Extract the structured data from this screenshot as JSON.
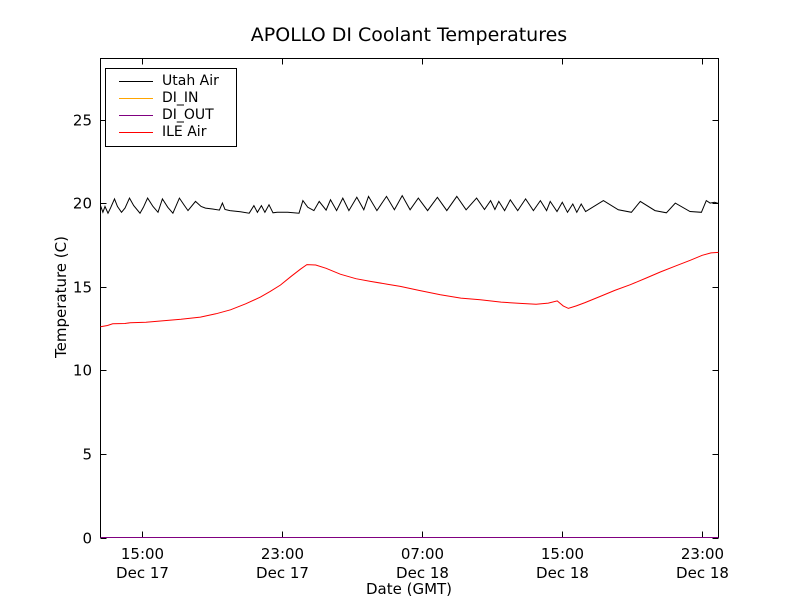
{
  "title": "APOLLO DI Coolant Temperatures",
  "axes": {
    "xlabel": "Date (GMT)",
    "ylabel": "Temperature (C)",
    "x_range": [
      12.6,
      47.93
    ],
    "y_range": [
      0,
      28.65
    ],
    "x_ticks": [
      {
        "value": 15,
        "line1": "15:00",
        "line2": "Dec 17"
      },
      {
        "value": 23,
        "line1": "23:00",
        "line2": "Dec 17"
      },
      {
        "value": 31,
        "line1": "07:00",
        "line2": "Dec 18"
      },
      {
        "value": 39,
        "line1": "15:00",
        "line2": "Dec 18"
      },
      {
        "value": 47,
        "line1": "23:00",
        "line2": "Dec 18"
      }
    ],
    "y_ticks": [
      0,
      5,
      10,
      15,
      20,
      25
    ]
  },
  "chart_data": {
    "type": "line",
    "title": "APOLLO DI Coolant Temperatures",
    "xlabel": "Date (GMT)",
    "ylabel": "Temperature (C)",
    "x_unit_hours_since": "Dec 17 00:00 GMT",
    "xlim": [
      12.6,
      47.93
    ],
    "ylim": [
      0,
      28.65
    ],
    "grid": false,
    "legend_position": "upper left",
    "series": [
      {
        "name": "Utah Air",
        "color": "#000000",
        "points": [
          [
            12.6,
            19.85
          ],
          [
            12.74,
            19.45
          ],
          [
            12.86,
            19.8
          ],
          [
            13.03,
            19.4
          ],
          [
            13.17,
            19.7
          ],
          [
            13.4,
            20.25
          ],
          [
            13.57,
            19.8
          ],
          [
            13.8,
            19.45
          ],
          [
            14.0,
            19.7
          ],
          [
            14.26,
            20.3
          ],
          [
            14.5,
            19.85
          ],
          [
            14.86,
            19.4
          ],
          [
            15.05,
            19.75
          ],
          [
            15.29,
            20.3
          ],
          [
            15.6,
            19.8
          ],
          [
            15.89,
            19.45
          ],
          [
            16.14,
            20.25
          ],
          [
            16.45,
            19.75
          ],
          [
            16.74,
            19.4
          ],
          [
            17.11,
            20.3
          ],
          [
            17.4,
            19.85
          ],
          [
            17.6,
            19.55
          ],
          [
            18.03,
            20.1
          ],
          [
            18.35,
            19.8
          ],
          [
            18.6,
            19.7
          ],
          [
            19.0,
            19.65
          ],
          [
            19.4,
            19.58
          ],
          [
            19.57,
            20.0
          ],
          [
            19.72,
            19.62
          ],
          [
            20.0,
            19.55
          ],
          [
            20.6,
            19.48
          ],
          [
            21.1,
            19.4
          ],
          [
            21.37,
            19.85
          ],
          [
            21.57,
            19.45
          ],
          [
            21.8,
            19.85
          ],
          [
            22.0,
            19.45
          ],
          [
            22.23,
            19.9
          ],
          [
            22.46,
            19.42
          ],
          [
            22.7,
            19.45
          ],
          [
            23.3,
            19.45
          ],
          [
            23.95,
            19.4
          ],
          [
            24.17,
            20.15
          ],
          [
            24.45,
            19.75
          ],
          [
            24.8,
            19.55
          ],
          [
            25.1,
            20.1
          ],
          [
            25.5,
            19.58
          ],
          [
            25.75,
            20.2
          ],
          [
            26.1,
            19.55
          ],
          [
            26.45,
            20.3
          ],
          [
            26.8,
            19.55
          ],
          [
            27.25,
            20.35
          ],
          [
            27.65,
            19.6
          ],
          [
            27.92,
            20.4
          ],
          [
            28.4,
            19.55
          ],
          [
            28.95,
            20.4
          ],
          [
            29.4,
            19.6
          ],
          [
            29.85,
            20.45
          ],
          [
            30.3,
            19.6
          ],
          [
            30.77,
            20.3
          ],
          [
            31.3,
            19.55
          ],
          [
            31.86,
            20.35
          ],
          [
            32.4,
            19.55
          ],
          [
            32.97,
            20.4
          ],
          [
            33.5,
            19.6
          ],
          [
            34.1,
            20.3
          ],
          [
            34.55,
            19.62
          ],
          [
            34.9,
            20.15
          ],
          [
            35.15,
            19.62
          ],
          [
            35.37,
            20.1
          ],
          [
            35.7,
            19.55
          ],
          [
            36.03,
            20.2
          ],
          [
            36.45,
            19.55
          ],
          [
            36.9,
            20.25
          ],
          [
            37.35,
            19.55
          ],
          [
            37.75,
            20.15
          ],
          [
            38.1,
            19.55
          ],
          [
            38.31,
            20.1
          ],
          [
            38.7,
            19.5
          ],
          [
            39.0,
            20.05
          ],
          [
            39.3,
            19.45
          ],
          [
            39.6,
            19.95
          ],
          [
            39.83,
            19.45
          ],
          [
            40.08,
            19.95
          ],
          [
            40.33,
            19.5
          ],
          [
            41.35,
            20.15
          ],
          [
            42.2,
            19.6
          ],
          [
            42.95,
            19.45
          ],
          [
            43.46,
            20.1
          ],
          [
            44.3,
            19.55
          ],
          [
            44.95,
            19.42
          ],
          [
            45.46,
            20.0
          ],
          [
            46.3,
            19.5
          ],
          [
            46.95,
            19.45
          ],
          [
            47.23,
            20.15
          ],
          [
            47.45,
            20.0
          ],
          [
            47.7,
            20.05
          ],
          [
            47.93,
            19.98
          ]
        ]
      },
      {
        "name": "DI_IN",
        "color": "#ffa500",
        "points": [
          [
            12.6,
            0
          ],
          [
            47.93,
            0
          ]
        ]
      },
      {
        "name": "DI_OUT",
        "color": "#800080",
        "points": [
          [
            12.6,
            0
          ],
          [
            47.93,
            0
          ]
        ]
      },
      {
        "name": "ILE Air",
        "color": "#ff0000",
        "points": [
          [
            12.6,
            12.6
          ],
          [
            13.0,
            12.68
          ],
          [
            13.3,
            12.78
          ],
          [
            14.0,
            12.8
          ],
          [
            14.3,
            12.85
          ],
          [
            15.2,
            12.88
          ],
          [
            16.03,
            12.95
          ],
          [
            17.2,
            13.05
          ],
          [
            18.31,
            13.18
          ],
          [
            19.2,
            13.38
          ],
          [
            20.03,
            13.62
          ],
          [
            20.9,
            13.98
          ],
          [
            21.74,
            14.38
          ],
          [
            22.3,
            14.72
          ],
          [
            22.89,
            15.1
          ],
          [
            23.5,
            15.62
          ],
          [
            24.03,
            16.05
          ],
          [
            24.4,
            16.32
          ],
          [
            24.9,
            16.3
          ],
          [
            25.5,
            16.1
          ],
          [
            26.31,
            15.75
          ],
          [
            27.2,
            15.48
          ],
          [
            28.03,
            15.32
          ],
          [
            29.0,
            15.15
          ],
          [
            29.74,
            15.02
          ],
          [
            30.8,
            14.78
          ],
          [
            32.03,
            14.52
          ],
          [
            33.2,
            14.32
          ],
          [
            34.31,
            14.22
          ],
          [
            35.5,
            14.08
          ],
          [
            36.6,
            14.0
          ],
          [
            37.5,
            13.95
          ],
          [
            38.2,
            14.02
          ],
          [
            38.71,
            14.15
          ],
          [
            39.05,
            13.85
          ],
          [
            39.35,
            13.7
          ],
          [
            39.8,
            13.85
          ],
          [
            40.3,
            14.05
          ],
          [
            41.17,
            14.42
          ],
          [
            42.0,
            14.78
          ],
          [
            42.89,
            15.12
          ],
          [
            43.8,
            15.52
          ],
          [
            44.6,
            15.88
          ],
          [
            45.5,
            16.25
          ],
          [
            46.31,
            16.58
          ],
          [
            47.0,
            16.88
          ],
          [
            47.5,
            17.02
          ],
          [
            47.93,
            17.05
          ]
        ]
      }
    ]
  }
}
